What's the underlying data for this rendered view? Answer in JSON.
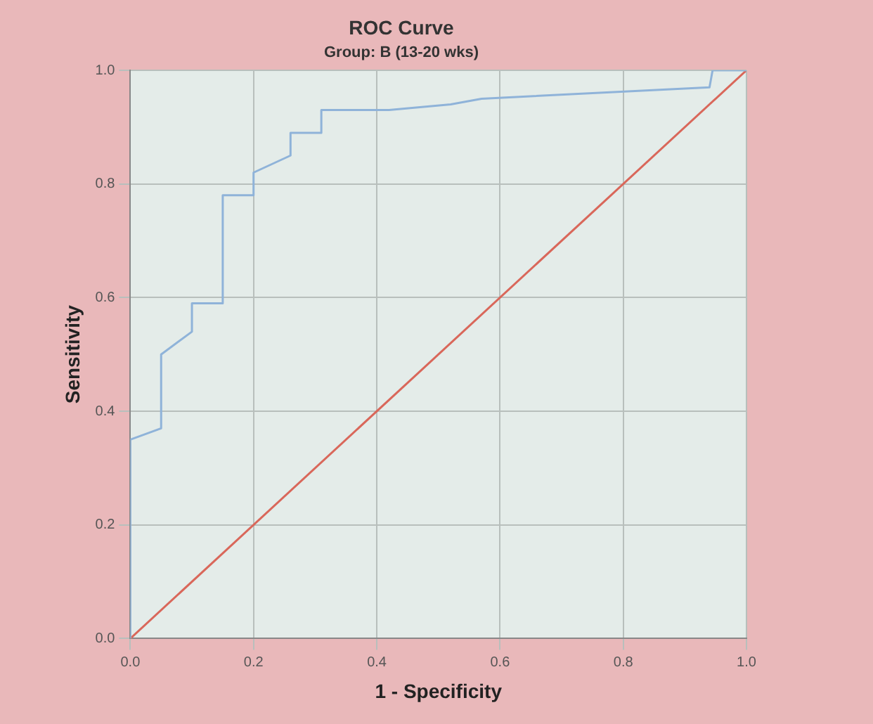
{
  "chart_data": {
    "type": "line",
    "title": "ROC Curve",
    "subtitle": "Group: B (13-20 wks)",
    "xlabel": "1 - Specificity",
    "ylabel": "Sensitivity",
    "xlim": [
      0,
      1
    ],
    "ylim": [
      0,
      1
    ],
    "xticks": [
      {
        "value": 0,
        "label": "0.0"
      },
      {
        "value": 0.2,
        "label": "0.2"
      },
      {
        "value": 0.4,
        "label": "0.4"
      },
      {
        "value": 0.6,
        "label": "0.6"
      },
      {
        "value": 0.8,
        "label": "0.8"
      },
      {
        "value": 1,
        "label": "1.0"
      }
    ],
    "yticks": [
      {
        "value": 0,
        "label": "0.0"
      },
      {
        "value": 0.2,
        "label": "0.2"
      },
      {
        "value": 0.4,
        "label": "0.4"
      },
      {
        "value": 0.6,
        "label": "0.6"
      },
      {
        "value": 0.8,
        "label": "0.8"
      },
      {
        "value": 1,
        "label": "1.0"
      }
    ],
    "grid": true,
    "marker": "none",
    "line_style": "solid",
    "series": [
      {
        "color": "#8fb3d9",
        "x": [
          0,
          0,
          0.05,
          0.05,
          0.1,
          0.1,
          0.15,
          0.15,
          0.2,
          0.2,
          0.26,
          0.26,
          0.31,
          0.31,
          0.42,
          0.52,
          0.57,
          0.94,
          0.945,
          1
        ],
        "values": [
          0,
          0.35,
          0.37,
          0.5,
          0.54,
          0.59,
          0.59,
          0.78,
          0.78,
          0.82,
          0.85,
          0.89,
          0.89,
          0.93,
          0.93,
          0.94,
          0.95,
          0.97,
          1,
          1
        ]
      },
      {
        "color": "#d9675a",
        "x": [
          0,
          1
        ],
        "values": [
          0,
          1
        ]
      }
    ]
  }
}
